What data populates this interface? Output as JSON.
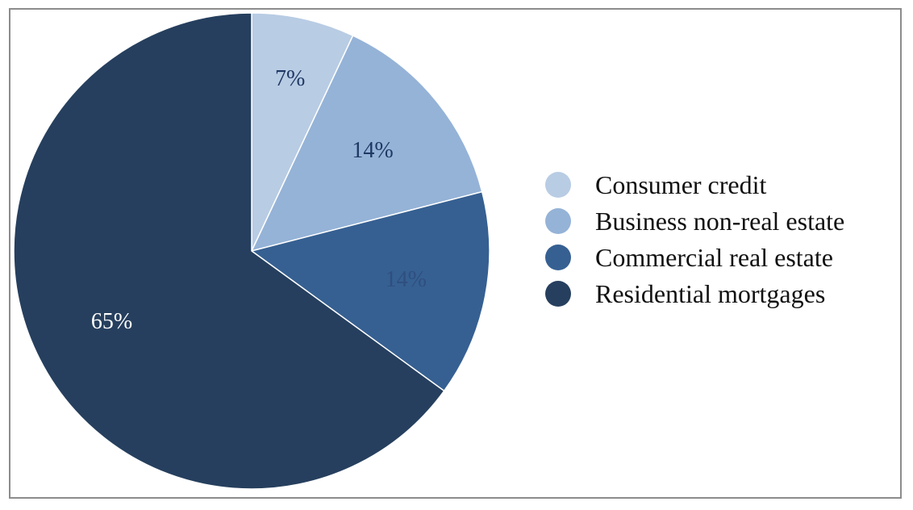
{
  "chart_data": {
    "type": "pie",
    "slices": [
      {
        "name": "Consumer credit",
        "value": 7,
        "label": "7%",
        "color": "#b8cce4",
        "label_color": "#1f3864"
      },
      {
        "name": "Business non-real estate",
        "value": 14,
        "label": "14%",
        "color": "#95b3d7",
        "label_color": "#1f3864"
      },
      {
        "name": "Commercial real estate",
        "value": 14,
        "label": "14%",
        "color": "#366092",
        "label_color": "#2f4f7f"
      },
      {
        "name": "Residential mortgages",
        "value": 65,
        "label": "65%",
        "color": "#263f5e",
        "label_color": "#ffffff"
      }
    ],
    "start_angle_deg": 0,
    "direction": "clockwise",
    "legend_position": "right"
  }
}
